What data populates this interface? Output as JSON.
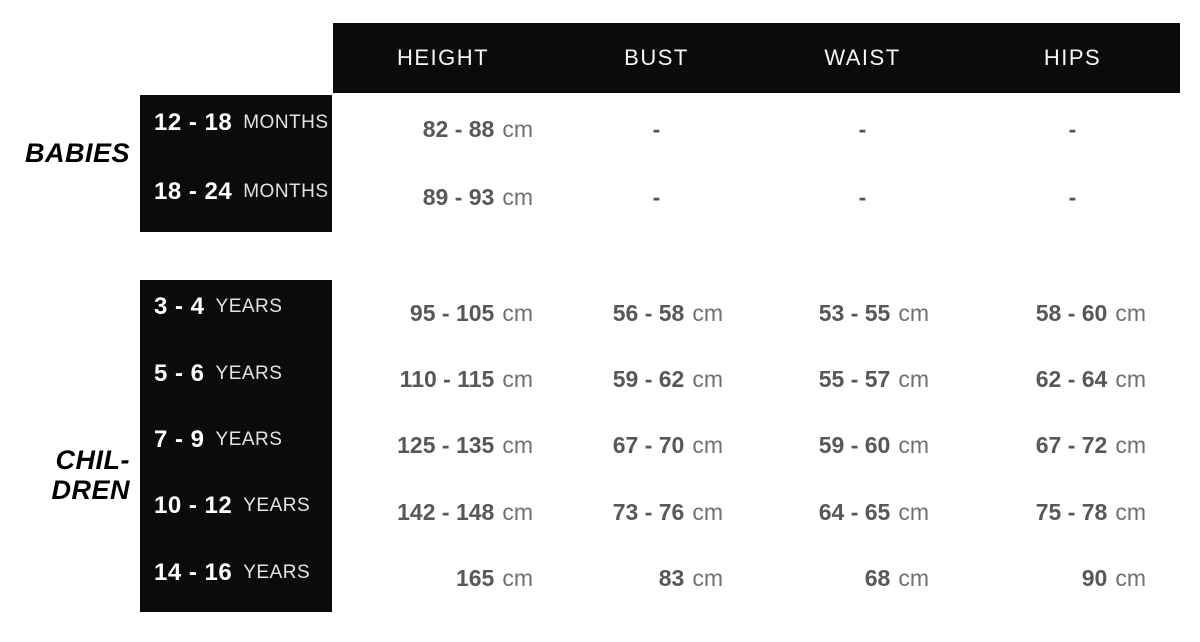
{
  "chart_data": {
    "type": "table",
    "unit": "cm",
    "columns": [
      "HEIGHT",
      "BUST",
      "WAIST",
      "HIPS"
    ],
    "groups": [
      {
        "name": "BABIES",
        "name_lines": [
          "BABIES"
        ],
        "rows": [
          {
            "range": "12 - 18",
            "range_unit": "MONTHS",
            "values": [
              "82 - 88",
              "-",
              "-",
              "-"
            ]
          },
          {
            "range": "18 - 24",
            "range_unit": "MONTHS",
            "values": [
              "89 - 93",
              "-",
              "-",
              "-"
            ]
          }
        ]
      },
      {
        "name": "CHILDREN",
        "name_lines": [
          "CHIL-",
          "DREN"
        ],
        "rows": [
          {
            "range": "3 - 4",
            "range_unit": "YEARS",
            "values": [
              "95 - 105",
              "56 - 58",
              "53 - 55",
              "58 - 60"
            ]
          },
          {
            "range": "5 - 6",
            "range_unit": "YEARS",
            "values": [
              "110 - 115",
              "59 - 62",
              "55 - 57",
              "62 - 64"
            ]
          },
          {
            "range": "7 - 9",
            "range_unit": "YEARS",
            "values": [
              "125 - 135",
              "67 - 70",
              "59 - 60",
              "67 - 72"
            ]
          },
          {
            "range": "10 - 12",
            "range_unit": "YEARS",
            "values": [
              "142 - 148",
              "73 - 76",
              "64 - 65",
              "75 - 78"
            ]
          },
          {
            "range": "14 - 16",
            "range_unit": "YEARS",
            "values": [
              "165",
              "83",
              "68",
              "90"
            ]
          }
        ]
      }
    ]
  },
  "colors": {
    "background": "#ffffff",
    "block_black": "#0b0b0b",
    "header_text": "#f6f6f6",
    "row_label_number": "#ffffff",
    "row_label_unit": "#e3e3e3",
    "value_number": "#57585a",
    "value_unit": "#6f7072",
    "group_label": "#000000"
  }
}
